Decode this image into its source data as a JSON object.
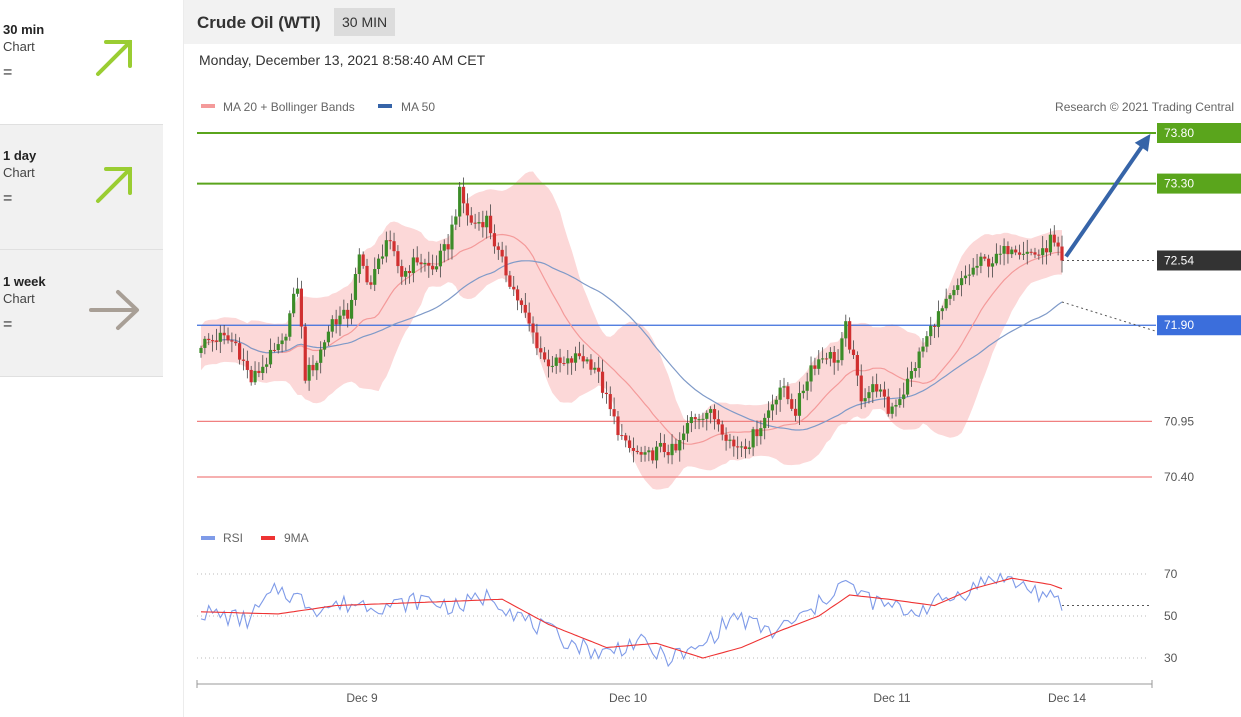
{
  "sidebar": {
    "items": [
      {
        "period": "30 min",
        "sub": "Chart",
        "eq": "=",
        "arrow": "up-right-arrow-icon",
        "color": "#9acd32"
      },
      {
        "period": "1 day",
        "sub": "Chart",
        "eq": "=",
        "arrow": "up-right-arrow-icon",
        "color": "#9acd32"
      },
      {
        "period": "1 week",
        "sub": "Chart",
        "eq": "=",
        "arrow": "right-arrow-icon",
        "color": "#a89f96"
      }
    ]
  },
  "header": {
    "title": "Crude Oil (WTI)",
    "timeframe": "30 MIN",
    "datetime": "Monday, December 13, 2021 8:58:40 AM CET"
  },
  "legend": {
    "ma20_bb": "MA 20 + Bollinger Bands",
    "ma50": "MA 50",
    "research": "Research © 2021 Trading Central",
    "rsi": "RSI",
    "rsi_ma": "9MA"
  },
  "colors": {
    "green": "#5aa51c",
    "blue": "#3b6edc",
    "dark": "#333333",
    "red_level": "#f08080",
    "candle_up": "#3c8c28",
    "candle_down": "#d03030",
    "bb_fill": "#fcd8d8",
    "ma20": "#f49a9a",
    "ma50": "#7f9ac8",
    "rsi": "#7f9be8",
    "rsi_ma": "#ee3333",
    "arrow": "#3664a8"
  },
  "chart_data": [
    {
      "type": "candlestick",
      "title": "Crude Oil (WTI)",
      "timeframe": "30 MIN",
      "x_ticks": [
        "Dec 9",
        "Dec 10",
        "Dec 11",
        "Dec 14"
      ],
      "ylim": [
        69.9,
        74.0
      ],
      "levels": [
        {
          "value": 73.8,
          "label": "73.80",
          "style": "resistance",
          "color": "#5aa51c"
        },
        {
          "value": 73.3,
          "label": "73.30",
          "style": "resistance",
          "color": "#5aa51c"
        },
        {
          "value": 72.54,
          "label": "72.54",
          "style": "last-price",
          "color": "#333333"
        },
        {
          "value": 71.9,
          "label": "71.90",
          "style": "pivot",
          "color": "#3b6edc"
        },
        {
          "value": 70.95,
          "label": "70.95",
          "style": "support",
          "color": "#f08080"
        },
        {
          "value": 70.4,
          "label": "70.40",
          "style": "support",
          "color": "#f08080"
        }
      ],
      "close_anchors": [
        [
          0,
          71.72
        ],
        [
          5,
          71.78
        ],
        [
          9,
          71.72
        ],
        [
          13,
          71.35
        ],
        [
          17,
          71.55
        ],
        [
          21,
          71.7
        ],
        [
          25,
          72.3
        ],
        [
          27,
          71.4
        ],
        [
          30,
          71.55
        ],
        [
          34,
          71.95
        ],
        [
          38,
          72.0
        ],
        [
          41,
          72.55
        ],
        [
          44,
          72.3
        ],
        [
          48,
          72.75
        ],
        [
          52,
          72.4
        ],
        [
          56,
          72.55
        ],
        [
          60,
          72.45
        ],
        [
          64,
          72.7
        ],
        [
          67,
          73.2
        ],
        [
          70,
          72.9
        ],
        [
          74,
          72.95
        ],
        [
          77,
          72.6
        ],
        [
          81,
          72.25
        ],
        [
          85,
          71.9
        ],
        [
          89,
          71.55
        ],
        [
          94,
          71.5
        ],
        [
          98,
          71.6
        ],
        [
          102,
          71.5
        ],
        [
          106,
          71.05
        ],
        [
          110,
          70.7
        ],
        [
          115,
          70.58
        ],
        [
          119,
          70.68
        ],
        [
          123,
          70.65
        ],
        [
          127,
          70.98
        ],
        [
          131,
          71.05
        ],
        [
          134,
          70.95
        ],
        [
          138,
          70.7
        ],
        [
          142,
          70.75
        ],
        [
          146,
          70.98
        ],
        [
          150,
          71.3
        ],
        [
          154,
          71.05
        ],
        [
          158,
          71.5
        ],
        [
          162,
          71.62
        ],
        [
          165,
          71.55
        ],
        [
          167,
          71.88
        ],
        [
          171,
          71.2
        ],
        [
          175,
          71.3
        ],
        [
          178,
          71.05
        ],
        [
          182,
          71.25
        ],
        [
          186,
          71.6
        ],
        [
          190,
          71.95
        ],
        [
          194,
          72.15
        ],
        [
          198,
          72.38
        ],
        [
          202,
          72.52
        ],
        [
          206,
          72.55
        ],
        [
          210,
          72.7
        ],
        [
          214,
          72.62
        ],
        [
          218,
          72.6
        ],
        [
          220,
          72.75
        ],
        [
          223,
          72.54
        ]
      ]
    },
    {
      "type": "line",
      "title": "RSI",
      "ylim": [
        25,
        72
      ],
      "y_ticks": [
        30,
        50,
        70
      ],
      "series": [
        {
          "name": "RSI",
          "anchors": [
            [
              0,
              52
            ],
            [
              12,
              48
            ],
            [
              20,
              63
            ],
            [
              30,
              54
            ],
            [
              40,
              56
            ],
            [
              50,
              55
            ],
            [
              58,
              58
            ],
            [
              66,
              54
            ],
            [
              75,
              60
            ],
            [
              84,
              48
            ],
            [
              95,
              38
            ],
            [
              104,
              32
            ],
            [
              113,
              38
            ],
            [
              120,
              30
            ],
            [
              128,
              33
            ],
            [
              138,
              50
            ],
            [
              148,
              42
            ],
            [
              158,
              52
            ],
            [
              166,
              66
            ],
            [
              175,
              56
            ],
            [
              184,
              52
            ],
            [
              196,
              60
            ],
            [
              206,
              69
            ],
            [
              215,
              63
            ],
            [
              223,
              55
            ]
          ]
        },
        {
          "name": "9MA",
          "anchors": [
            [
              0,
              52
            ],
            [
              20,
              51
            ],
            [
              35,
              55
            ],
            [
              50,
              56
            ],
            [
              65,
              57
            ],
            [
              78,
              58
            ],
            [
              90,
              46
            ],
            [
              105,
              35
            ],
            [
              118,
              37
            ],
            [
              130,
              30
            ],
            [
              140,
              35
            ],
            [
              150,
              43
            ],
            [
              160,
              50
            ],
            [
              168,
              60
            ],
            [
              178,
              58
            ],
            [
              190,
              55
            ],
            [
              200,
              63
            ],
            [
              210,
              68
            ],
            [
              220,
              65
            ],
            [
              223,
              63
            ]
          ]
        }
      ],
      "last_value": 55
    }
  ]
}
